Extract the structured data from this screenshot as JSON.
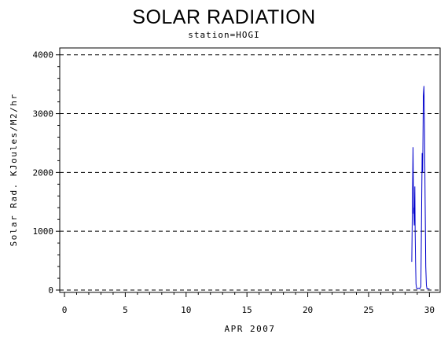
{
  "chart_data": {
    "type": "line",
    "title": "SOLAR RADIATION",
    "subtitle": "station=HOGI",
    "xlabel": "APR 2007",
    "ylabel": "Solar Rad. KJoules/M2/hr",
    "xlim": [
      0,
      30.3
    ],
    "ylim": [
      0,
      4050
    ],
    "xticks": [
      0,
      5,
      10,
      15,
      20,
      25,
      30
    ],
    "yticks": [
      0,
      1000,
      2000,
      3000,
      4000
    ],
    "grid": "horizontal dashed",
    "series": [
      {
        "color": "#0000cc",
        "x": [
          28.55,
          28.6,
          28.65,
          28.7,
          28.72,
          28.75,
          28.8,
          28.83,
          28.86,
          28.9,
          28.95,
          29.0,
          29.1,
          29.2,
          29.3,
          29.35,
          29.4,
          29.45,
          29.5,
          29.55,
          29.6,
          29.65,
          29.7,
          29.75,
          29.8,
          29.9,
          30.0
        ],
        "y": [
          480,
          1450,
          2430,
          1300,
          1400,
          1100,
          1760,
          1000,
          500,
          100,
          30,
          20,
          30,
          20,
          60,
          1200,
          2330,
          2000,
          3300,
          3470,
          2700,
          1500,
          400,
          80,
          20,
          20,
          20
        ]
      }
    ]
  }
}
